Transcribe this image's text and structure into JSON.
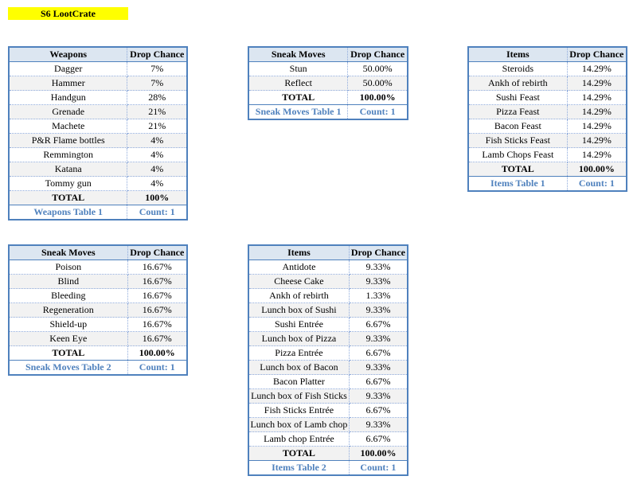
{
  "title": "S6 LootCrate",
  "tables": [
    {
      "header": [
        "Weapons",
        "Drop Chance"
      ],
      "rows": [
        [
          "Dagger",
          "7%"
        ],
        [
          "Hammer",
          "7%"
        ],
        [
          "Handgun",
          "28%"
        ],
        [
          "Grenade",
          "21%"
        ],
        [
          "Machete",
          "21%"
        ],
        [
          "P&R Flame bottles",
          "4%"
        ],
        [
          "Remmington",
          "4%"
        ],
        [
          "Katana",
          "4%"
        ],
        [
          "Tommy gun",
          "4%"
        ]
      ],
      "total": [
        "TOTAL",
        "100%"
      ],
      "footer": [
        "Weapons Table 1",
        "Count: 1"
      ]
    },
    {
      "header": [
        "Sneak Moves",
        "Drop Chance"
      ],
      "rows": [
        [
          "Stun",
          "50.00%"
        ],
        [
          "Reflect",
          "50.00%"
        ]
      ],
      "total": [
        "TOTAL",
        "100.00%"
      ],
      "footer": [
        "Sneak Moves Table 1",
        "Count: 1"
      ]
    },
    {
      "header": [
        "Items",
        "Drop Chance"
      ],
      "rows": [
        [
          "Steroids",
          "14.29%"
        ],
        [
          "Ankh of rebirth",
          "14.29%"
        ],
        [
          "Sushi Feast",
          "14.29%"
        ],
        [
          "Pizza Feast",
          "14.29%"
        ],
        [
          "Bacon Feast",
          "14.29%"
        ],
        [
          "Fish Sticks Feast",
          "14.29%"
        ],
        [
          "Lamb Chops Feast",
          "14.29%"
        ]
      ],
      "total": [
        "TOTAL",
        "100.00%"
      ],
      "footer": [
        "Items Table 1",
        "Count: 1"
      ]
    },
    {
      "header": [
        "Sneak Moves",
        "Drop Chance"
      ],
      "rows": [
        [
          "Poison",
          "16.67%"
        ],
        [
          "Blind",
          "16.67%"
        ],
        [
          "Bleeding",
          "16.67%"
        ],
        [
          "Regeneration",
          "16.67%"
        ],
        [
          "Shield-up",
          "16.67%"
        ],
        [
          "Keen Eye",
          "16.67%"
        ]
      ],
      "total": [
        "TOTAL",
        "100.00%"
      ],
      "footer": [
        "Sneak Moves Table 2",
        "Count: 1"
      ]
    },
    {
      "header": [
        "Items",
        "Drop Chance"
      ],
      "rows": [
        [
          "Antidote",
          "9.33%"
        ],
        [
          "Cheese Cake",
          "9.33%"
        ],
        [
          "Ankh of rebirth",
          "1.33%"
        ],
        [
          "Lunch box of Sushi",
          "9.33%"
        ],
        [
          "Sushi Entrée",
          "6.67%"
        ],
        [
          "Lunch box of Pizza",
          "9.33%"
        ],
        [
          "Pizza Entrée",
          "6.67%"
        ],
        [
          "Lunch box of Bacon",
          "9.33%"
        ],
        [
          "Bacon Platter",
          "6.67%"
        ],
        [
          "Lunch box of Fish Sticks",
          "9.33%"
        ],
        [
          "Fish Sticks Entrée",
          "6.67%"
        ],
        [
          "Lunch box of Lamb chop",
          "9.33%"
        ],
        [
          "Lamb chop Entrée",
          "6.67%"
        ]
      ],
      "total": [
        "TOTAL",
        "100.00%"
      ],
      "footer": [
        "Items Table 2",
        "Count: 1"
      ]
    }
  ]
}
